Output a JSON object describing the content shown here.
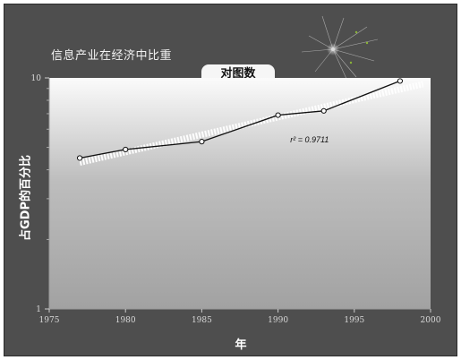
{
  "chart_data": {
    "type": "line",
    "title": "信息产业在经济中比重",
    "subtitle": "对图数",
    "xlabel": "年",
    "ylabel": "占GDP的百分比",
    "y_scale": "log",
    "xlim": [
      1975,
      2000
    ],
    "ylim": [
      1,
      10
    ],
    "x_ticks": [
      1975,
      1980,
      1985,
      1990,
      1995,
      2000
    ],
    "y_ticks": [
      1,
      10
    ],
    "grid": false,
    "legend": "none",
    "series": [
      {
        "x": [
          1977,
          1980,
          1985,
          1990,
          1993,
          1998
        ],
        "y": [
          4.5,
          4.9,
          5.3,
          6.9,
          7.2,
          9.7
        ]
      }
    ],
    "trendline": {
      "x": [
        1977,
        1999.5
      ],
      "y": [
        4.3,
        9.4
      ],
      "label": "r² = 0.9711"
    },
    "colors": {
      "background": "#4e4e4e",
      "plot_top": "#fbfbfb",
      "plot_bottom": "#a2a2a2",
      "line": "#111111",
      "trend": "#ffffff"
    }
  }
}
